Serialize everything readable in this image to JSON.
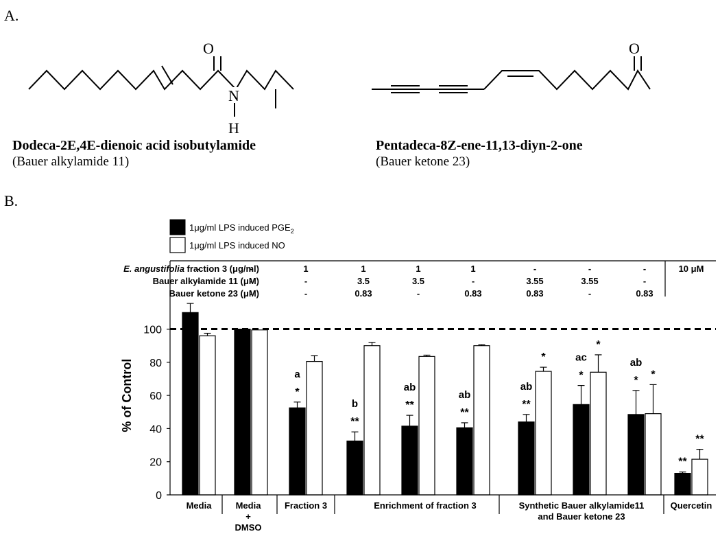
{
  "panel_a_label": "A.",
  "panel_b_label": "B.",
  "structures": {
    "left": {
      "name": "Dodeca-2E,4E-dienoic acid isobutylamide",
      "subtitle": "(Bauer alkylamide 11)",
      "atom_o": "O",
      "atom_n": "N",
      "atom_h": "H"
    },
    "right": {
      "name": "Pentadeca-8Z-ene-11,13-diyn-2-one",
      "subtitle": "(Bauer ketone 23)",
      "atom_o": "O"
    }
  },
  "legend": {
    "pge2_prefix": "1μg/ml LPS induced PGE",
    "pge2_sub": "2",
    "no": "1μg/ml LPS induced NO"
  },
  "treatment_table": {
    "rows": [
      {
        "label_italic": "E. angustifolia",
        "label": " fraction 3 (μg/ml)",
        "values": [
          "-",
          "-",
          "1",
          "1",
          "1",
          "1",
          "-",
          "-",
          "-"
        ]
      },
      {
        "label_italic": "",
        "label": "Bauer alkylamide 11 (μM)",
        "values": [
          "-",
          "-",
          "-",
          "3.5",
          "3.5",
          "-",
          "3.55",
          "3.55",
          "-"
        ]
      },
      {
        "label_italic": "",
        "label": "Bauer ketone 23 (μM)",
        "values": [
          "-",
          "-",
          "-",
          "0.83",
          "-",
          "0.83",
          "0.83",
          "-",
          "0.83"
        ]
      }
    ],
    "quercetin_dose": "10 μM"
  },
  "group_labels": [
    "Media",
    "Media\n+\nDMSO",
    "Fraction 3",
    "Enrichment of fraction 3",
    "Synthetic Bauer alkylamide11\nand Bauer ketone 23",
    "Quercetin"
  ],
  "chart_data": {
    "type": "bar",
    "ylabel": "% of Control",
    "ylim": [
      0,
      120
    ],
    "yticks": [
      0,
      20,
      40,
      60,
      80,
      100
    ],
    "reference_line": 100,
    "series": [
      {
        "name": "1μg/ml LPS induced PGE2",
        "color": "#000000",
        "values": [
          110,
          100,
          52.5,
          32.5,
          41.5,
          40.5,
          44,
          54.5,
          48.5,
          13
        ],
        "errors": [
          5.5,
          0,
          3.5,
          5.5,
          6.5,
          3,
          4.5,
          11.5,
          14.5,
          0.8
        ],
        "annotations": [
          [
            "",
            ""
          ],
          [
            "",
            ""
          ],
          [
            "*",
            "a"
          ],
          [
            "**",
            "b"
          ],
          [
            "**",
            "ab"
          ],
          [
            "**",
            "ab"
          ],
          [
            "**",
            "ab"
          ],
          [
            "*",
            "ac"
          ],
          [
            "*",
            "ab"
          ],
          [
            "**",
            ""
          ]
        ]
      },
      {
        "name": "1μg/ml LPS induced NO",
        "color": "#ffffff",
        "values": [
          96,
          99.5,
          80.5,
          90,
          83.5,
          90,
          74.5,
          74,
          49,
          21.5
        ],
        "errors": [
          1.5,
          0,
          3.5,
          2,
          0.8,
          0.6,
          2.5,
          10.5,
          17.5,
          6
        ],
        "annotations": [
          [
            ""
          ],
          [
            ""
          ],
          [
            ""
          ],
          [
            ""
          ],
          [
            ""
          ],
          [
            ""
          ],
          [
            "*"
          ],
          [
            "*"
          ],
          [
            "*"
          ],
          [
            "**"
          ]
        ]
      }
    ]
  }
}
